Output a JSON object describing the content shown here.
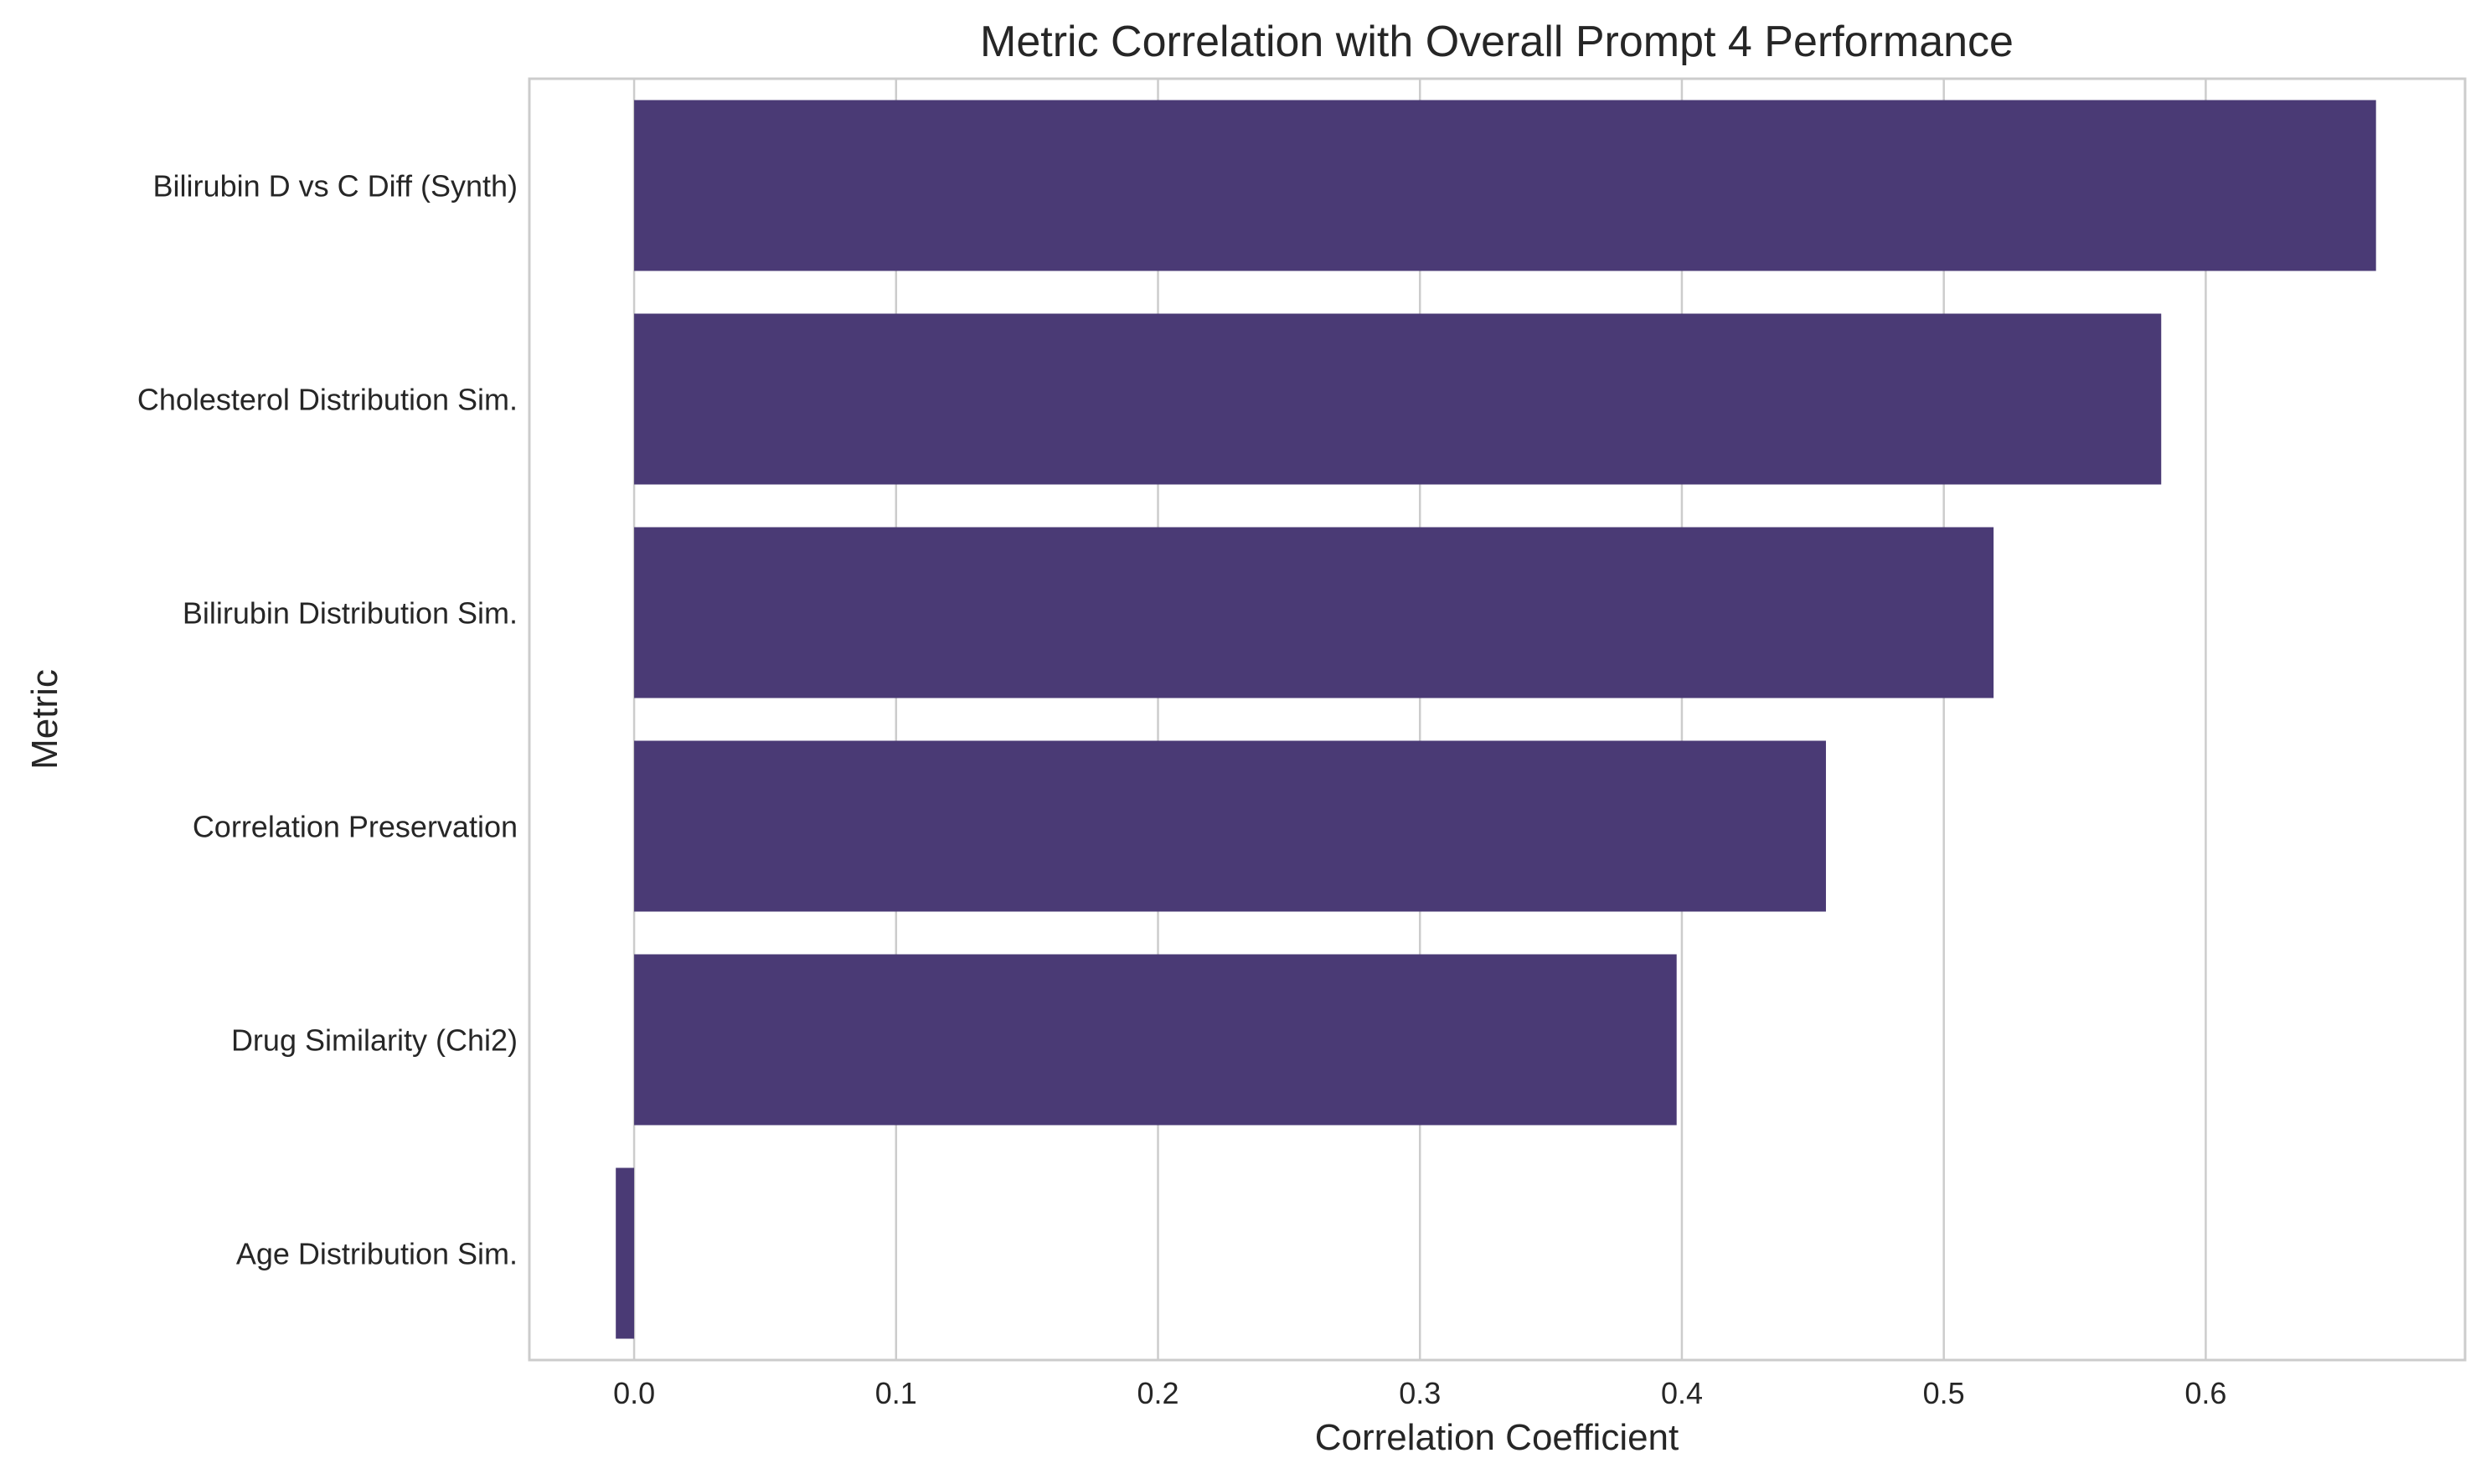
{
  "chart_data": {
    "type": "bar",
    "orientation": "horizontal",
    "title": "Metric Correlation with Overall Prompt 4 Performance",
    "xlabel": "Correlation Coefficient",
    "ylabel": "Metric",
    "categories": [
      "Bilirubin D vs C Diff (Synth)",
      "Cholesterol Distribution Sim.",
      "Bilirubin Distribution Sim.",
      "Correlation Preservation",
      "Drug Similarity (Chi2)",
      "Age Distribution Sim."
    ],
    "values": [
      0.665,
      0.583,
      0.519,
      0.455,
      0.398,
      -0.007
    ],
    "xlim": [
      -0.04,
      0.699
    ],
    "xticks": [
      0.0,
      0.1,
      0.2,
      0.3,
      0.4,
      0.5,
      0.6
    ],
    "xtick_labels": [
      "0.0",
      "0.1",
      "0.2",
      "0.3",
      "0.4",
      "0.5",
      "0.6"
    ],
    "grid": true,
    "bar_color": "#4a3a75",
    "grid_color": "#cccccc",
    "frame_color": "#cccccc"
  }
}
